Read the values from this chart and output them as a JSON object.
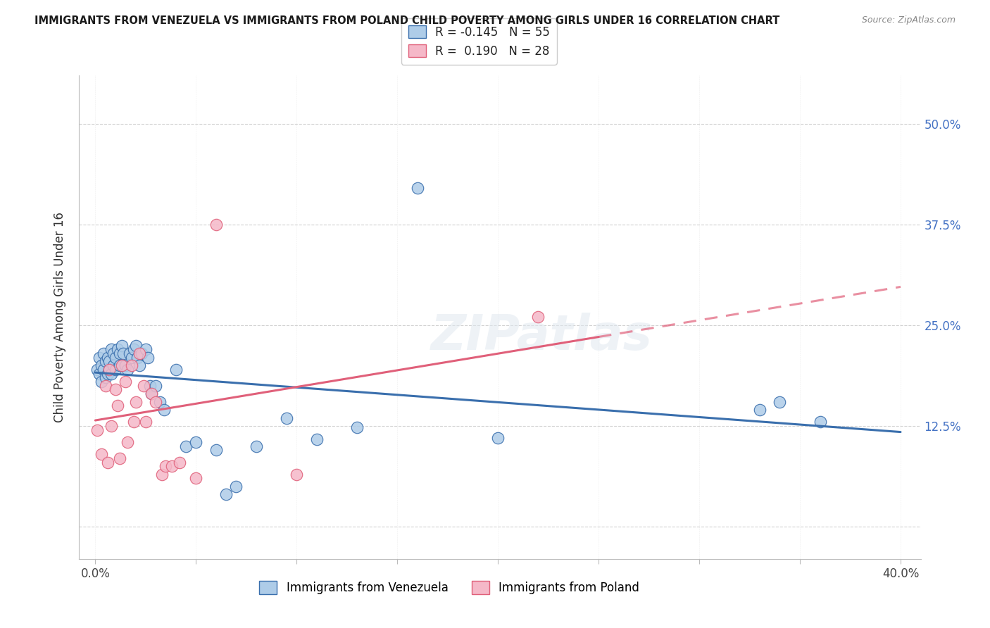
{
  "title": "IMMIGRANTS FROM VENEZUELA VS IMMIGRANTS FROM POLAND CHILD POVERTY AMONG GIRLS UNDER 16 CORRELATION CHART",
  "source": "Source: ZipAtlas.com",
  "ylabel": "Child Poverty Among Girls Under 16",
  "color_venezuela": "#aecce8",
  "color_poland": "#f5b8c8",
  "line_color_venezuela": "#3a6fad",
  "line_color_poland": "#e0607a",
  "R_venezuela": -0.145,
  "N_venezuela": 55,
  "R_poland": 0.19,
  "N_poland": 28,
  "venezuela_x": [
    0.001,
    0.002,
    0.002,
    0.003,
    0.003,
    0.004,
    0.004,
    0.005,
    0.005,
    0.006,
    0.006,
    0.007,
    0.007,
    0.008,
    0.008,
    0.009,
    0.009,
    0.01,
    0.01,
    0.011,
    0.012,
    0.012,
    0.013,
    0.014,
    0.015,
    0.016,
    0.017,
    0.018,
    0.019,
    0.02,
    0.021,
    0.022,
    0.023,
    0.025,
    0.026,
    0.027,
    0.028,
    0.03,
    0.032,
    0.034,
    0.04,
    0.045,
    0.05,
    0.06,
    0.065,
    0.07,
    0.08,
    0.095,
    0.11,
    0.13,
    0.16,
    0.2,
    0.33,
    0.34,
    0.36
  ],
  "venezuela_y": [
    0.195,
    0.19,
    0.21,
    0.18,
    0.2,
    0.195,
    0.215,
    0.185,
    0.205,
    0.19,
    0.21,
    0.195,
    0.205,
    0.22,
    0.19,
    0.2,
    0.215,
    0.195,
    0.21,
    0.22,
    0.2,
    0.215,
    0.225,
    0.215,
    0.2,
    0.195,
    0.215,
    0.21,
    0.22,
    0.225,
    0.21,
    0.2,
    0.215,
    0.22,
    0.21,
    0.175,
    0.165,
    0.175,
    0.155,
    0.145,
    0.195,
    0.1,
    0.105,
    0.095,
    0.04,
    0.05,
    0.1,
    0.135,
    0.108,
    0.123,
    0.42,
    0.11,
    0.145,
    0.155,
    0.13
  ],
  "poland_x": [
    0.001,
    0.003,
    0.005,
    0.006,
    0.007,
    0.008,
    0.01,
    0.011,
    0.012,
    0.013,
    0.015,
    0.016,
    0.018,
    0.019,
    0.02,
    0.022,
    0.024,
    0.025,
    0.028,
    0.03,
    0.033,
    0.035,
    0.038,
    0.042,
    0.05,
    0.06,
    0.1,
    0.22
  ],
  "poland_y": [
    0.12,
    0.09,
    0.175,
    0.08,
    0.195,
    0.125,
    0.17,
    0.15,
    0.085,
    0.2,
    0.18,
    0.105,
    0.2,
    0.13,
    0.155,
    0.215,
    0.175,
    0.13,
    0.165,
    0.155,
    0.065,
    0.075,
    0.075,
    0.08,
    0.06,
    0.375,
    0.065,
    0.26
  ],
  "ytick_positions": [
    0.0,
    0.125,
    0.25,
    0.375,
    0.5
  ],
  "yticklabels_right": [
    "",
    "12.5%",
    "25.0%",
    "37.5%",
    "50.0%"
  ],
  "xtick_positions": [
    0.0,
    0.05,
    0.1,
    0.15,
    0.2,
    0.25,
    0.3,
    0.35,
    0.4
  ],
  "xticklabels": [
    "0.0%",
    "",
    "",
    "",
    "",
    "",
    "",
    "",
    "40.0%"
  ],
  "xlim": [
    -0.008,
    0.41
  ],
  "ylim": [
    -0.04,
    0.56
  ]
}
